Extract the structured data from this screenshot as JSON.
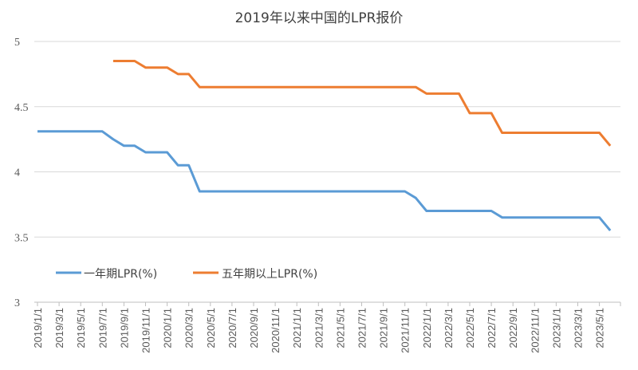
{
  "chart_data": {
    "type": "line",
    "title": "2019年以来中国的LPR报价",
    "xlabel": "",
    "ylabel": "",
    "ylim": [
      3,
      5
    ],
    "yticks": [
      "3",
      "3.5",
      "4",
      "4.5",
      "5"
    ],
    "grid": "horizontal",
    "legend": "bottom-left inside",
    "x_tick_labels": [
      "2019/1/1",
      "2019/3/1",
      "2019/5/1",
      "2019/7/1",
      "2019/9/1",
      "2019/11/1",
      "2020/1/1",
      "2020/3/1",
      "2020/5/1",
      "2020/7/1",
      "2020/9/1",
      "2020/11/1",
      "2021/1/1",
      "2021/3/1",
      "2021/5/1",
      "2021/7/1",
      "2021/9/1",
      "2021/11/1",
      "2022/1/1",
      "2022/3/1",
      "2022/5/1",
      "2022/7/1",
      "2022/9/1",
      "2022/11/1",
      "2023/1/1",
      "2023/3/1",
      "2023/5/1"
    ],
    "x": [
      "2019/1",
      "2019/2",
      "2019/3",
      "2019/4",
      "2019/5",
      "2019/6",
      "2019/7",
      "2019/8",
      "2019/9",
      "2019/10",
      "2019/11",
      "2019/12",
      "2020/1",
      "2020/2",
      "2020/3",
      "2020/4",
      "2020/5",
      "2020/6",
      "2020/7",
      "2020/8",
      "2020/9",
      "2020/10",
      "2020/11",
      "2020/12",
      "2021/1",
      "2021/2",
      "2021/3",
      "2021/4",
      "2021/5",
      "2021/6",
      "2021/7",
      "2021/8",
      "2021/9",
      "2021/10",
      "2021/11",
      "2021/12",
      "2022/1",
      "2022/2",
      "2022/3",
      "2022/4",
      "2022/5",
      "2022/6",
      "2022/7",
      "2022/8",
      "2022/9",
      "2022/10",
      "2022/11",
      "2022/12",
      "2023/1",
      "2023/2",
      "2023/3",
      "2023/4",
      "2023/5",
      "2023/6"
    ],
    "series": [
      {
        "name": "一年期LPR(%)",
        "color": "#5B9BD5",
        "values": [
          4.31,
          4.31,
          4.31,
          4.31,
          4.31,
          4.31,
          4.31,
          4.25,
          4.2,
          4.2,
          4.15,
          4.15,
          4.15,
          4.05,
          4.05,
          3.85,
          3.85,
          3.85,
          3.85,
          3.85,
          3.85,
          3.85,
          3.85,
          3.85,
          3.85,
          3.85,
          3.85,
          3.85,
          3.85,
          3.85,
          3.85,
          3.85,
          3.85,
          3.85,
          3.85,
          3.8,
          3.7,
          3.7,
          3.7,
          3.7,
          3.7,
          3.7,
          3.7,
          3.65,
          3.65,
          3.65,
          3.65,
          3.65,
          3.65,
          3.65,
          3.65,
          3.65,
          3.65,
          3.55
        ]
      },
      {
        "name": "五年期以上LPR(%)",
        "color": "#ED7D31",
        "values": [
          null,
          null,
          null,
          null,
          null,
          null,
          null,
          4.85,
          4.85,
          4.85,
          4.8,
          4.8,
          4.8,
          4.75,
          4.75,
          4.65,
          4.65,
          4.65,
          4.65,
          4.65,
          4.65,
          4.65,
          4.65,
          4.65,
          4.65,
          4.65,
          4.65,
          4.65,
          4.65,
          4.65,
          4.65,
          4.65,
          4.65,
          4.65,
          4.65,
          4.65,
          4.6,
          4.6,
          4.6,
          4.6,
          4.45,
          4.45,
          4.45,
          4.3,
          4.3,
          4.3,
          4.3,
          4.3,
          4.3,
          4.3,
          4.3,
          4.3,
          4.3,
          4.2
        ]
      }
    ]
  }
}
